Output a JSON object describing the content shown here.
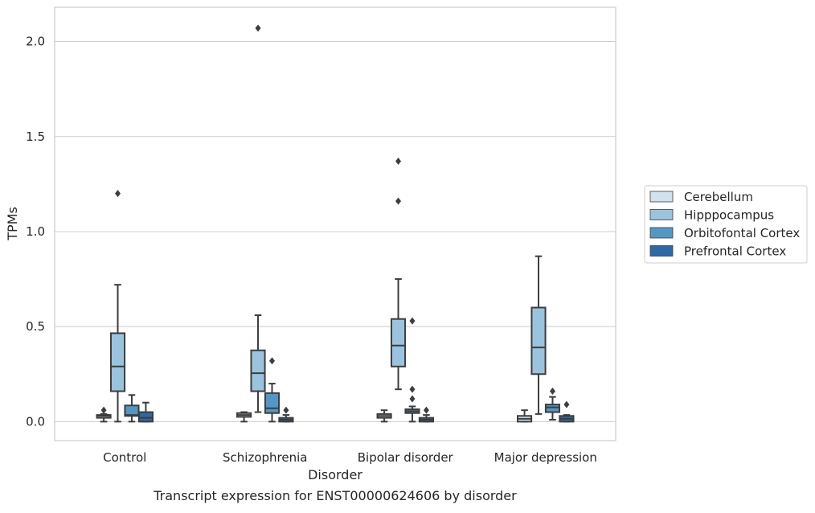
{
  "chart_data": {
    "type": "box",
    "title": "",
    "caption": "Transcript expression for ENST00000624606 by disorder",
    "xlabel": "Disorder",
    "ylabel": "TPMs",
    "ylim": [
      -0.1,
      2.18
    ],
    "yticks": [
      0.0,
      0.5,
      1.0,
      1.5,
      2.0
    ],
    "ytick_labels": [
      "0.0",
      "0.5",
      "1.0",
      "1.5",
      "2.0"
    ],
    "grid": "horizontal",
    "legend_placement": "right",
    "categories": [
      "Control",
      "Schizophrenia",
      "Bipolar disorder",
      "Major depression"
    ],
    "series": [
      {
        "name": "Cerebellum",
        "color": "#d0e1f0",
        "boxes": [
          {
            "whisker_low": 0.0,
            "q1": 0.02,
            "median": 0.03,
            "q3": 0.035,
            "whisker_high": 0.04,
            "outliers": [
              0.06
            ]
          },
          {
            "whisker_low": 0.0,
            "q1": 0.025,
            "median": 0.035,
            "q3": 0.045,
            "whisker_high": 0.05,
            "outliers": []
          },
          {
            "whisker_low": 0.0,
            "q1": 0.02,
            "median": 0.03,
            "q3": 0.04,
            "whisker_high": 0.06,
            "outliers": []
          },
          {
            "whisker_low": 0.0,
            "q1": 0.0,
            "median": 0.015,
            "q3": 0.03,
            "whisker_high": 0.06,
            "outliers": []
          }
        ]
      },
      {
        "name": "Hipppocampus",
        "color": "#9ac4de",
        "boxes": [
          {
            "whisker_low": 0.0,
            "q1": 0.16,
            "median": 0.29,
            "q3": 0.465,
            "whisker_high": 0.72,
            "outliers": [
              1.2
            ]
          },
          {
            "whisker_low": 0.05,
            "q1": 0.16,
            "median": 0.255,
            "q3": 0.375,
            "whisker_high": 0.56,
            "outliers": [
              2.07
            ]
          },
          {
            "whisker_low": 0.17,
            "q1": 0.29,
            "median": 0.4,
            "q3": 0.54,
            "whisker_high": 0.75,
            "outliers": [
              1.16,
              1.37
            ]
          },
          {
            "whisker_low": 0.04,
            "q1": 0.25,
            "median": 0.39,
            "q3": 0.6,
            "whisker_high": 0.87,
            "outliers": []
          }
        ]
      },
      {
        "name": "Orbitofontal Cortex",
        "color": "#5397c6",
        "boxes": [
          {
            "whisker_low": 0.0,
            "q1": 0.03,
            "median": 0.035,
            "q3": 0.085,
            "whisker_high": 0.14,
            "outliers": []
          },
          {
            "whisker_low": 0.0,
            "q1": 0.045,
            "median": 0.07,
            "q3": 0.15,
            "whisker_high": 0.2,
            "outliers": [
              0.32
            ]
          },
          {
            "whisker_low": 0.0,
            "q1": 0.045,
            "median": 0.055,
            "q3": 0.065,
            "whisker_high": 0.08,
            "outliers": [
              0.12,
              0.17,
              0.53
            ]
          },
          {
            "whisker_low": 0.01,
            "q1": 0.05,
            "median": 0.075,
            "q3": 0.09,
            "whisker_high": 0.13,
            "outliers": [
              0.16
            ]
          }
        ]
      },
      {
        "name": "Prefrontal Cortex",
        "color": "#2b6aa6",
        "boxes": [
          {
            "whisker_low": 0.0,
            "q1": 0.0,
            "median": 0.02,
            "q3": 0.05,
            "whisker_high": 0.1,
            "outliers": []
          },
          {
            "whisker_low": 0.0,
            "q1": 0.0,
            "median": 0.01,
            "q3": 0.02,
            "whisker_high": 0.035,
            "outliers": [
              0.06
            ]
          },
          {
            "whisker_low": 0.0,
            "q1": 0.0,
            "median": 0.01,
            "q3": 0.02,
            "whisker_high": 0.035,
            "outliers": [
              0.06
            ]
          },
          {
            "whisker_low": 0.0,
            "q1": 0.0,
            "median": 0.015,
            "q3": 0.03,
            "whisker_high": 0.035,
            "outliers": [
              0.09
            ]
          }
        ]
      }
    ]
  }
}
